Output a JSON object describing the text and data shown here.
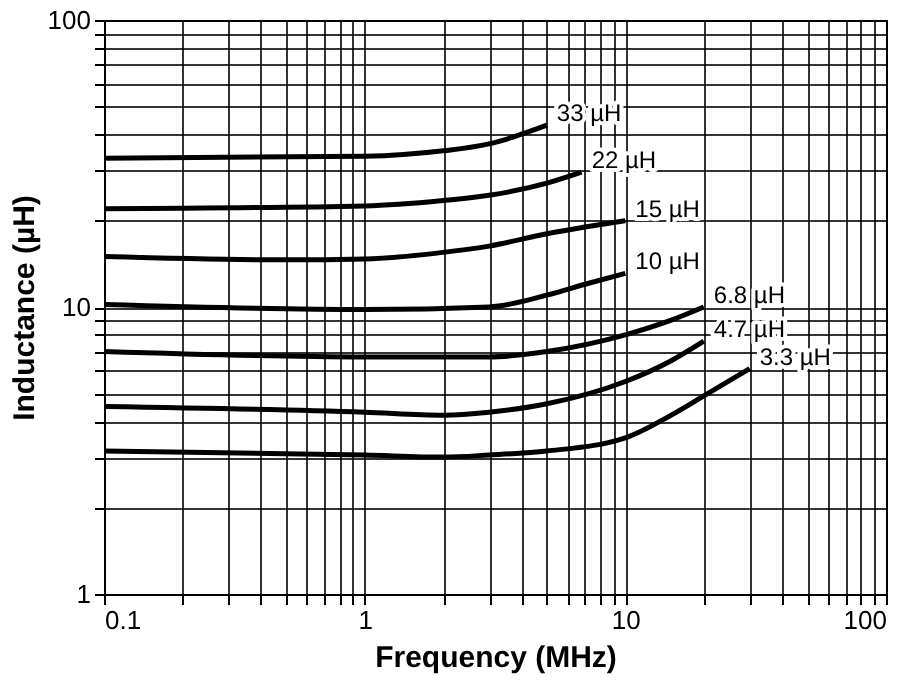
{
  "chart_data": {
    "type": "line",
    "xlabel": "Frequency (MHz)",
    "ylabel": "Inductance (µH)",
    "log": "xy",
    "grid": true,
    "legend": false,
    "line_style": "solid",
    "xlim": [
      0.1,
      100
    ],
    "ylim": [
      1,
      100
    ],
    "xticks": [
      0.1,
      {
        "value": 0.2,
        "label": null
      },
      {
        "value": 0.3,
        "label": null
      },
      {
        "value": 0.4,
        "label": null
      },
      {
        "value": 0.5,
        "label": null
      },
      {
        "value": 0.6,
        "label": null
      },
      {
        "value": 0.7,
        "label": null
      },
      {
        "value": 0.8,
        "label": null
      },
      {
        "value": 0.9,
        "label": null
      },
      1,
      {
        "value": 2,
        "label": null
      },
      {
        "value": 3,
        "label": null
      },
      {
        "value": 4,
        "label": null
      },
      {
        "value": 5,
        "label": null
      },
      {
        "value": 6,
        "label": null
      },
      {
        "value": 7,
        "label": null
      },
      {
        "value": 8,
        "label": null
      },
      {
        "value": 9,
        "label": null
      },
      10,
      {
        "value": 20,
        "label": null
      },
      {
        "value": 30,
        "label": null
      },
      {
        "value": 40,
        "label": null
      },
      {
        "value": 50,
        "label": null
      },
      {
        "value": 60,
        "label": null
      },
      {
        "value": 70,
        "label": null
      },
      {
        "value": 80,
        "label": null
      },
      {
        "value": 90,
        "label": null
      },
      100
    ],
    "yticks": [
      1,
      {
        "value": 2,
        "label": null
      },
      {
        "value": 3,
        "label": null
      },
      {
        "value": 4,
        "label": null
      },
      {
        "value": 5,
        "label": null
      },
      {
        "value": 6,
        "label": null
      },
      {
        "value": 7,
        "label": null
      },
      {
        "value": 8,
        "label": null
      },
      {
        "value": 9,
        "label": null
      },
      10,
      {
        "value": 20,
        "label": null
      },
      {
        "value": 30,
        "label": null
      },
      {
        "value": 40,
        "label": null
      },
      {
        "value": 50,
        "label": null
      },
      {
        "value": 60,
        "label": null
      },
      {
        "value": 70,
        "label": null
      },
      {
        "value": 80,
        "label": null
      },
      {
        "value": 90,
        "label": null
      },
      100
    ],
    "series": [
      {
        "name": "33 µH",
        "color": "#000000",
        "x": [
          0.1,
          1,
          2,
          3,
          5
        ],
        "values": [
          33,
          33.5,
          35,
          37,
          43
        ]
      },
      {
        "name": "22 µH",
        "color": "#000000",
        "x": [
          0.1,
          1,
          2,
          3,
          5,
          6.8
        ],
        "values": [
          22,
          22.5,
          23.5,
          24.5,
          27,
          29.5
        ]
      },
      {
        "name": "15 µH",
        "color": "#000000",
        "x": [
          0.1,
          0.5,
          1,
          2,
          3,
          5,
          7,
          10
        ],
        "values": [
          15,
          14.6,
          14.7,
          15.5,
          16.3,
          18,
          19,
          20
        ]
      },
      {
        "name": "10 µH",
        "color": "#000000",
        "x": [
          0.1,
          1,
          3,
          5,
          7,
          10
        ],
        "values": [
          10.2,
          9.8,
          10,
          11,
          12,
          13.1
        ]
      },
      {
        "name": "6.8 µH",
        "color": "#000000",
        "x": [
          0.1,
          1,
          3,
          5,
          10,
          15,
          20
        ],
        "values": [
          7,
          6.7,
          6.7,
          7,
          8,
          9,
          10
        ]
      },
      {
        "name": "4.7 µH",
        "color": "#000000",
        "x": [
          0.1,
          1,
          2,
          3,
          5,
          10,
          15,
          20
        ],
        "values": [
          4.5,
          4.3,
          4.2,
          4.3,
          4.6,
          5.5,
          6.5,
          7.6
        ]
      },
      {
        "name": "3.3 µH",
        "color": "#000000",
        "x": [
          0.1,
          1,
          2,
          3,
          5,
          10,
          15,
          20,
          30
        ],
        "values": [
          3.15,
          3.05,
          3,
          3.05,
          3.15,
          3.5,
          4.2,
          4.9,
          6.1
        ]
      }
    ]
  }
}
